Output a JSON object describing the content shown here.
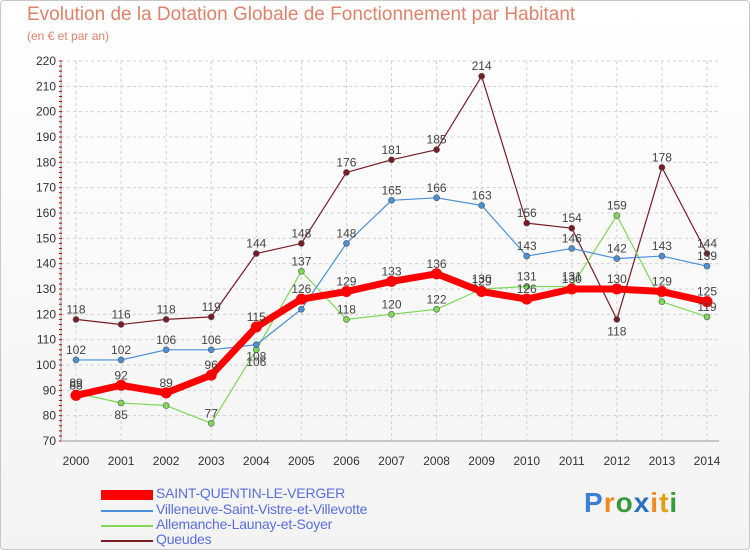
{
  "colors": {
    "accent": "#e0826a",
    "grid": "#d0d0d0",
    "axis_tick": "#c00000",
    "legend_text": "#5a6ee0"
  },
  "logo": {
    "text": "Proxiti",
    "letters": [
      "P",
      "r",
      "o",
      "x",
      "i",
      "t",
      "i"
    ],
    "letter_colors": [
      "#3a7fd5",
      "#f08a20",
      "#3a9a3a",
      "#2a70c0",
      "#f08a20",
      "#e0a010",
      "#3a9a3a"
    ]
  },
  "chart_data": {
    "type": "line",
    "title": "Evolution de la Dotation Globale de Fonctionnement par Habitant",
    "subtitle": "(en € et par an)",
    "xlabel": "",
    "ylabel": "",
    "x": [
      "2000",
      "2001",
      "2002",
      "2003",
      "2004",
      "2005",
      "2006",
      "2007",
      "2008",
      "2009",
      "2010",
      "2011",
      "2012",
      "2013",
      "2014"
    ],
    "ylim": [
      70,
      220
    ],
    "yticks": [
      70,
      80,
      90,
      100,
      110,
      120,
      130,
      140,
      150,
      160,
      170,
      180,
      190,
      200,
      210,
      220
    ],
    "grid": true,
    "legend_position": "bottom-left",
    "series": [
      {
        "name": "Queudes",
        "color": "#7a1c24",
        "width": 1.2,
        "values": [
          118,
          116,
          118,
          119,
          144,
          148,
          176,
          181,
          185,
          214,
          156,
          154,
          118,
          178,
          144
        ]
      },
      {
        "name": "Allemanche-Launay-et-Soyer",
        "color": "#7ed957",
        "width": 1.2,
        "values": [
          89,
          85,
          84,
          77,
          106,
          137,
          118,
          120,
          122,
          130,
          131,
          131,
          159,
          125,
          119
        ]
      },
      {
        "name": "Villeneuve-Saint-Vistre-et-Villevotte",
        "color": "#4a90d9",
        "width": 1.2,
        "values": [
          102,
          102,
          106,
          106,
          108,
          122,
          148,
          165,
          166,
          163,
          143,
          146,
          142,
          143,
          139
        ]
      },
      {
        "name": "SAINT-QUENTIN-LE-VERGER",
        "color": "#ff0000",
        "width": 7,
        "values": [
          88,
          92,
          89,
          96,
          115,
          126,
          129,
          133,
          136,
          129,
          126,
          130,
          130,
          129,
          125
        ]
      }
    ],
    "value_labels": [
      {
        "x": "2000",
        "y": 118,
        "text": "118"
      },
      {
        "x": "2001",
        "y": 116,
        "text": "116"
      },
      {
        "x": "2002",
        "y": 118,
        "text": "118"
      },
      {
        "x": "2003",
        "y": 119,
        "text": "119"
      },
      {
        "x": "2004",
        "y": 144,
        "text": "144"
      },
      {
        "x": "2005",
        "y": 148,
        "text": "148"
      },
      {
        "x": "2006",
        "y": 176,
        "text": "176"
      },
      {
        "x": "2007",
        "y": 181,
        "text": "181"
      },
      {
        "x": "2008",
        "y": 185,
        "text": "185"
      },
      {
        "x": "2009",
        "y": 214,
        "text": "214"
      },
      {
        "x": "2010",
        "y": 156,
        "text": "156"
      },
      {
        "x": "2011",
        "y": 154,
        "text": "154"
      },
      {
        "x": "2012",
        "y": 118,
        "text": "118",
        "below": true
      },
      {
        "x": "2013",
        "y": 178,
        "text": "178"
      },
      {
        "x": "2014",
        "y": 144,
        "text": "144"
      },
      {
        "x": "2000",
        "y": 102,
        "text": "102"
      },
      {
        "x": "2001",
        "y": 102,
        "text": "102"
      },
      {
        "x": "2002",
        "y": 106,
        "text": "106"
      },
      {
        "x": "2003",
        "y": 106,
        "text": "106"
      },
      {
        "x": "2004",
        "y": 108,
        "text": "108",
        "below": true
      },
      {
        "x": "2006",
        "y": 148,
        "text": "148"
      },
      {
        "x": "2007",
        "y": 165,
        "text": "165"
      },
      {
        "x": "2008",
        "y": 166,
        "text": "166"
      },
      {
        "x": "2009",
        "y": 163,
        "text": "163"
      },
      {
        "x": "2010",
        "y": 143,
        "text": "143"
      },
      {
        "x": "2011",
        "y": 146,
        "text": "146"
      },
      {
        "x": "2012",
        "y": 142,
        "text": "142"
      },
      {
        "x": "2013",
        "y": 143,
        "text": "143"
      },
      {
        "x": "2014",
        "y": 139,
        "text": "139"
      },
      {
        "x": "2000",
        "y": 89,
        "text": "89"
      },
      {
        "x": "2001",
        "y": 85,
        "text": "85",
        "below": true
      },
      {
        "x": "2003",
        "y": 77,
        "text": "77"
      },
      {
        "x": "2004",
        "y": 106,
        "text": "106",
        "below": true
      },
      {
        "x": "2005",
        "y": 137,
        "text": "137"
      },
      {
        "x": "2006",
        "y": 118,
        "text": "118"
      },
      {
        "x": "2007",
        "y": 120,
        "text": "120"
      },
      {
        "x": "2008",
        "y": 122,
        "text": "122"
      },
      {
        "x": "2009",
        "y": 130,
        "text": "130"
      },
      {
        "x": "2010",
        "y": 131,
        "text": "131"
      },
      {
        "x": "2011",
        "y": 131,
        "text": "131"
      },
      {
        "x": "2012",
        "y": 159,
        "text": "159"
      },
      {
        "x": "2014",
        "y": 119,
        "text": "119"
      },
      {
        "x": "2000",
        "y": 88,
        "text": "88"
      },
      {
        "x": "2001",
        "y": 92,
        "text": "92"
      },
      {
        "x": "2002",
        "y": 89,
        "text": "89"
      },
      {
        "x": "2003",
        "y": 96,
        "text": "96"
      },
      {
        "x": "2004",
        "y": 115,
        "text": "115"
      },
      {
        "x": "2005",
        "y": 126,
        "text": "126"
      },
      {
        "x": "2006",
        "y": 129,
        "text": "129"
      },
      {
        "x": "2007",
        "y": 133,
        "text": "133"
      },
      {
        "x": "2008",
        "y": 136,
        "text": "136"
      },
      {
        "x": "2009",
        "y": 129,
        "text": "129"
      },
      {
        "x": "2010",
        "y": 126,
        "text": "126"
      },
      {
        "x": "2011",
        "y": 130,
        "text": "130"
      },
      {
        "x": "2012",
        "y": 130,
        "text": "130"
      },
      {
        "x": "2013",
        "y": 129,
        "text": "129"
      },
      {
        "x": "2014",
        "y": 125,
        "text": "125"
      }
    ],
    "legend": [
      {
        "name": "SAINT-QUENTIN-LE-VERGER",
        "color": "#ff0000",
        "thick": true
      },
      {
        "name": "Villeneuve-Saint-Vistre-et-Villevotte",
        "color": "#4a90d9",
        "thick": false
      },
      {
        "name": "Allemanche-Launay-et-Soyer",
        "color": "#7ed957",
        "thick": false
      },
      {
        "name": "Queudes",
        "color": "#7a1c24",
        "thick": false
      }
    ]
  }
}
